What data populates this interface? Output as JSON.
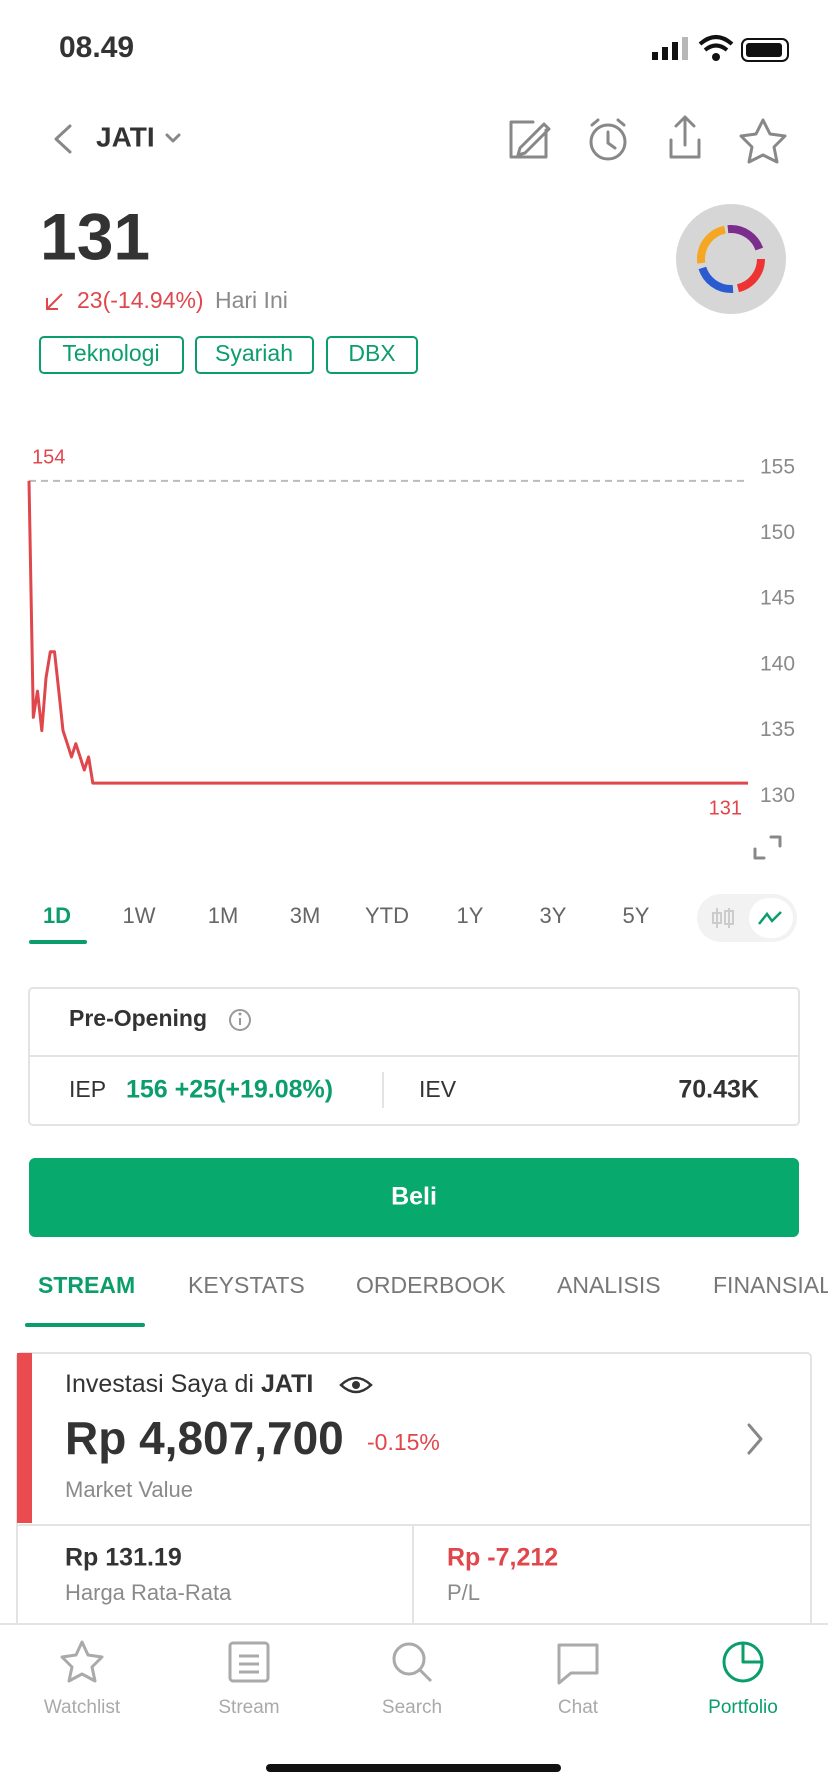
{
  "status_bar": {
    "time": "08.49"
  },
  "header": {
    "ticker": "JATI"
  },
  "quote": {
    "price": "131",
    "change": "23(-14.94%)",
    "period": "Hari Ini",
    "tags": [
      "Teknologi",
      "Syariah",
      "DBX"
    ]
  },
  "chart_data": {
    "type": "line",
    "color": "#e0474c",
    "values": [
      154,
      136,
      138,
      135,
      139,
      141,
      141,
      138,
      135,
      134,
      133,
      134,
      133,
      132,
      133,
      131,
      131,
      131,
      131,
      131,
      131,
      131,
      131,
      131,
      131,
      131,
      131,
      131,
      131,
      131,
      131,
      131,
      131,
      131,
      131,
      131,
      131,
      131,
      131,
      131,
      131,
      131,
      131,
      131,
      131,
      131,
      131,
      131,
      131,
      131,
      131,
      131,
      131,
      131,
      131,
      131,
      131,
      131,
      131,
      131,
      131,
      131,
      131,
      131,
      131,
      131,
      131,
      131,
      131,
      131,
      131,
      131,
      131,
      131,
      131,
      131,
      131,
      131,
      131,
      131,
      131,
      131,
      131,
      131,
      131,
      131,
      131,
      131,
      131,
      131,
      131,
      131,
      131,
      131,
      131,
      131,
      131,
      131,
      131,
      131,
      131,
      131,
      131,
      131,
      131,
      131,
      131,
      131,
      131,
      131,
      131,
      131,
      131,
      131,
      131,
      131,
      131,
      131,
      131,
      131,
      131,
      131,
      131,
      131,
      131,
      131,
      131,
      131,
      131,
      131,
      131,
      131,
      131,
      131,
      131,
      131,
      131,
      131,
      131,
      131,
      131,
      131,
      131,
      131,
      131,
      131,
      131,
      131,
      131,
      131,
      131,
      131,
      131,
      131,
      131,
      131,
      131,
      131,
      131,
      131,
      131,
      131,
      131,
      131,
      131,
      131,
      131,
      131,
      131,
      131
    ],
    "ylim": [
      128.5,
      156.5
    ],
    "yticks": [
      155,
      150,
      145,
      140,
      135,
      130
    ],
    "high_label": 154,
    "last_label": 131
  },
  "ranges": [
    "1D",
    "1W",
    "1M",
    "3M",
    "YTD",
    "1Y",
    "3Y",
    "5Y"
  ],
  "pre_opening": {
    "title": "Pre-Opening",
    "iep_label": "IEP",
    "iep_value": "156 +25(+19.08%)",
    "iev_label": "IEV",
    "iev_value": "70.43K"
  },
  "buy_button": "Beli",
  "tabs": [
    "STREAM",
    "KEYSTATS",
    "ORDERBOOK",
    "ANALISIS",
    "FINANSIAL"
  ],
  "investment": {
    "title_prefix": "Investasi Saya di",
    "ticker": "JATI",
    "market_value": "Rp 4,807,700",
    "change": "-0.15%",
    "market_value_label": "Market Value",
    "avg_price": "Rp 131.19",
    "avg_price_label": "Harga Rata-Rata",
    "pl": "Rp -7,212",
    "pl_label": "P/L"
  },
  "nav": [
    "Watchlist",
    "Stream",
    "Search",
    "Chat",
    "Portfolio"
  ]
}
